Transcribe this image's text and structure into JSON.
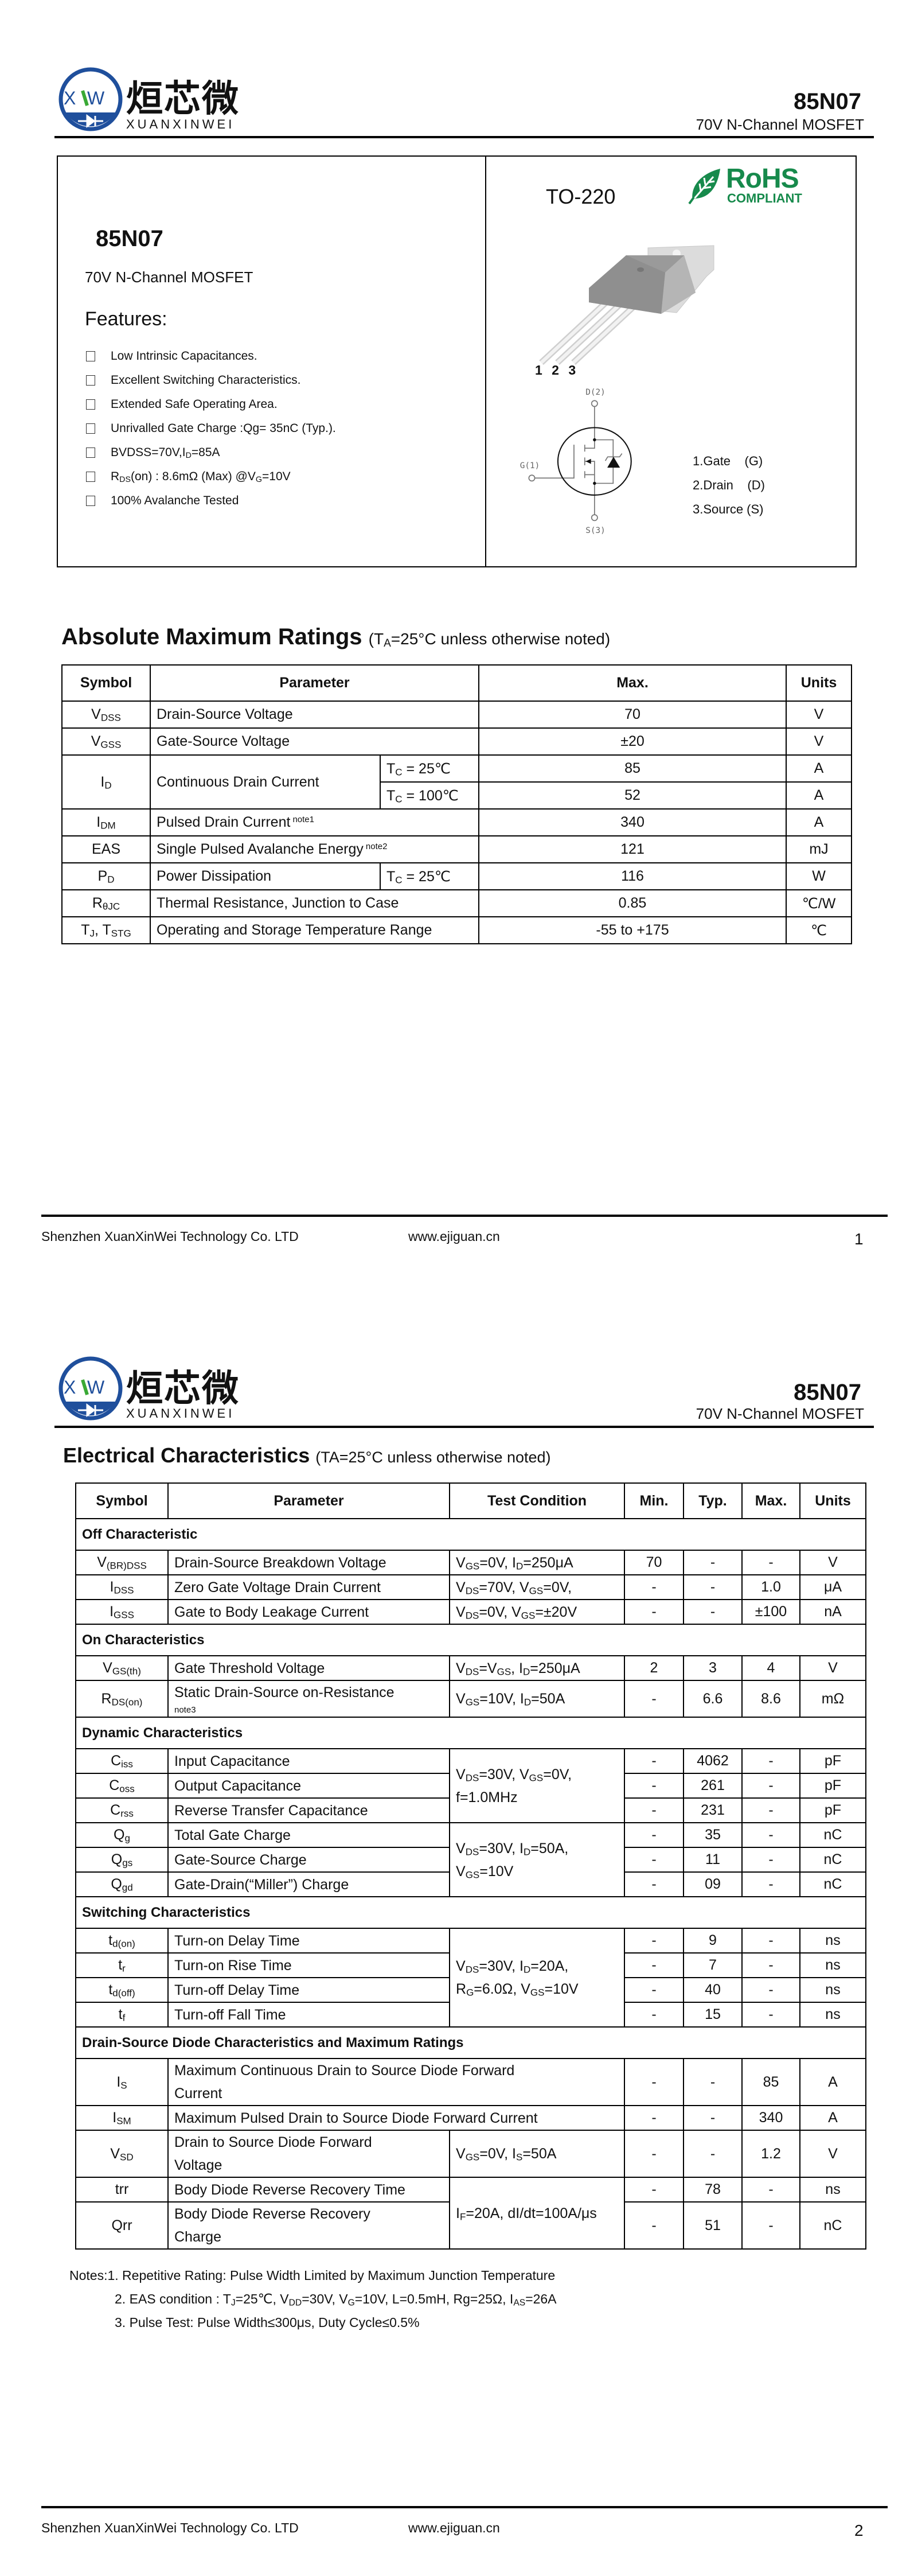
{
  "brand": {
    "logo_letters": "XW",
    "name_cn": "烜芯微",
    "name_en": "XUANXINWEI",
    "blue": "#1f4f9c",
    "green": "#3aa935"
  },
  "header": {
    "part": "85N07",
    "subtitle": "70V N-Channel MOSFET"
  },
  "overview": {
    "part": "85N07",
    "subtitle": "70V N-Channel MOSFET",
    "features_title": "Features:",
    "features": [
      "Low Intrinsic Capacitances.",
      "Excellent Switching Characteristics.",
      "Extended Safe Operating Area.",
      "Unrivalled Gate Charge :Qg= 35nC (Typ.).",
      [
        "BVDSS=70V,I",
        "D",
        "=85A"
      ],
      [
        "R",
        "DS",
        "(on) : 8.6mΩ (Max) @V",
        "G",
        "=10V"
      ],
      "100% Avalanche Tested"
    ],
    "package": "TO-220",
    "rohs": {
      "title": "RoHS",
      "subtitle": "COMPLIANT",
      "color": "#178a4c"
    },
    "pin_numbers": "1 2 3",
    "schematic": {
      "drain": "D(2)",
      "gate": "G(1)",
      "source": "S(3)"
    },
    "pins": [
      "1.Gate    (G)",
      "2.Drain    (D)",
      "3.Source (S)"
    ]
  },
  "abs_max": {
    "title": "Absolute Maximum Ratings",
    "condition": [
      "(T",
      "A",
      "=25°C unless otherwise noted)"
    ],
    "columns": [
      "Symbol",
      "Parameter",
      "Max.",
      "Units"
    ],
    "rows": [
      {
        "symbol": [
          "V",
          "DSS"
        ],
        "parameter": "Drain-Source Voltage",
        "max": "70",
        "unit": "V"
      },
      {
        "symbol": [
          "V",
          "GSS"
        ],
        "parameter": "Gate-Source Voltage",
        "max": "±20",
        "unit": "V"
      },
      {
        "symbol": [
          "I",
          "D"
        ],
        "parameter": "Continuous Drain Current",
        "sub_rows": [
          {
            "condition": [
              "T",
              "C",
              " = 25℃"
            ],
            "max": "85",
            "unit": "A"
          },
          {
            "condition": [
              "T",
              "C",
              " = 100℃"
            ],
            "max": "52",
            "unit": "A"
          }
        ]
      },
      {
        "symbol": [
          "I",
          "DM"
        ],
        "parameter": "Pulsed Drain Current",
        "note": "note1",
        "max": "340",
        "unit": "A"
      },
      {
        "symbol": "EAS",
        "parameter": "Single Pulsed Avalanche Energy",
        "note": "note2",
        "max": "121",
        "unit": "mJ"
      },
      {
        "symbol": [
          "P",
          "D"
        ],
        "parameter": "Power Dissipation",
        "condition": [
          "T",
          "C",
          " = 25℃"
        ],
        "max": "116",
        "unit": "W"
      },
      {
        "symbol": [
          "R",
          "θJC"
        ],
        "parameter": "Thermal Resistance, Junction to Case",
        "max": "0.85",
        "unit": "℃/W"
      },
      {
        "symbol": [
          "T",
          "J",
          ", T",
          "STG"
        ],
        "parameter": "Operating and Storage Temperature Range",
        "max": "-55 to +175",
        "unit": "℃"
      }
    ]
  },
  "electrical": {
    "title": "Electrical Characteristics",
    "condition": "(TA=25°C unless otherwise noted)",
    "columns": [
      "Symbol",
      "Parameter",
      "Test Condition",
      "Min.",
      "Typ.",
      "Max.",
      "Units"
    ],
    "sections": [
      {
        "title": "Off Characteristic",
        "rows": [
          {
            "symbol": [
              "V",
              "(BR)DSS"
            ],
            "parameter": "Drain-Source Breakdown Voltage",
            "condition": [
              [
                "V",
                "GS",
                "=0V, I",
                "D",
                "=250μA"
              ]
            ],
            "min": "70",
            "typ": "-",
            "max": "-",
            "unit": "V"
          },
          {
            "symbol": [
              "I",
              "DSS"
            ],
            "parameter": "Zero Gate Voltage Drain Current",
            "condition": [
              [
                "V",
                "DS",
                "=70V, V",
                "GS",
                "=0V,"
              ]
            ],
            "min": "-",
            "typ": "-",
            "max": "1.0",
            "unit": "μA"
          },
          {
            "symbol": [
              "I",
              "GSS"
            ],
            "parameter": "Gate to Body Leakage Current",
            "condition": [
              [
                "V",
                "DS",
                "=0V, V",
                "GS",
                "=±20V"
              ]
            ],
            "min": "-",
            "typ": "-",
            "max": "±100",
            "unit": "nA"
          }
        ]
      },
      {
        "title": "On Characteristics",
        "rows": [
          {
            "symbol": [
              "V",
              "GS(th)"
            ],
            "parameter": "Gate Threshold Voltage",
            "condition": [
              [
                "V",
                "DS",
                "=V",
                "GS",
                ", I",
                "D",
                "=250μA"
              ]
            ],
            "min": "2",
            "typ": "3",
            "max": "4",
            "unit": "V"
          },
          {
            "symbol": [
              "R",
              "DS(on)"
            ],
            "parameter": "Static Drain-Source on-Resistance",
            "note": "note3",
            "condition": [
              [
                "V",
                "GS",
                "=10V, I",
                "D",
                "=50A"
              ]
            ],
            "min": "-",
            "typ": "6.6",
            "max": "8.6",
            "unit": "mΩ"
          }
        ]
      },
      {
        "title": "Dynamic Characteristics",
        "rows": [
          {
            "symbol": [
              "C",
              "iss"
            ],
            "parameter": "Input Capacitance",
            "condition": [
              [
                "V",
                "DS",
                "=30V, V",
                "GS",
                "=0V,"
              ],
              "f=1.0MHz"
            ],
            "min": "-",
            "typ": "4062",
            "max": "-",
            "unit": "pF"
          },
          {
            "symbol": [
              "C",
              "oss"
            ],
            "parameter": "Output Capacitance",
            "condition": null,
            "min": "-",
            "typ": "261",
            "max": "-",
            "unit": "pF"
          },
          {
            "symbol": [
              "C",
              "rss"
            ],
            "parameter": "Reverse Transfer Capacitance",
            "condition": null,
            "min": "-",
            "typ": "231",
            "max": "-",
            "unit": "pF"
          },
          {
            "symbol": [
              "Q",
              "g"
            ],
            "parameter": "Total Gate Charge",
            "condition": [
              [
                "V",
                "DS",
                "=30V, I",
                "D",
                "=50A,"
              ],
              [
                "V",
                "GS",
                "=10V"
              ]
            ],
            "min": "-",
            "typ": "35",
            "max": "-",
            "unit": "nC"
          },
          {
            "symbol": [
              "Q",
              "gs"
            ],
            "parameter": "Gate-Source Charge",
            "condition": null,
            "min": "-",
            "typ": "11",
            "max": "-",
            "unit": "nC"
          },
          {
            "symbol": [
              "Q",
              "gd"
            ],
            "parameter": "Gate-Drain(“Miller”) Charge",
            "condition": null,
            "min": "-",
            "typ": "09",
            "max": "-",
            "unit": "nC"
          }
        ]
      },
      {
        "title": "Switching Characteristics",
        "rows": [
          {
            "symbol": [
              "t",
              "d(on)"
            ],
            "parameter": "Turn-on Delay Time",
            "condition": [
              [
                "V",
                "DS",
                "=30V, I",
                "D",
                "=20A,"
              ],
              [
                "R",
                "G",
                "=6.0Ω, V",
                "GS",
                "=10V"
              ]
            ],
            "min": "-",
            "typ": "9",
            "max": "-",
            "unit": "ns"
          },
          {
            "symbol": [
              "t",
              "r"
            ],
            "parameter": "Turn-on Rise Time",
            "condition": null,
            "min": "-",
            "typ": "7",
            "max": "-",
            "unit": "ns"
          },
          {
            "symbol": [
              "t",
              "d(off)"
            ],
            "parameter": "Turn-off Delay Time",
            "condition": null,
            "min": "-",
            "typ": "40",
            "max": "-",
            "unit": "ns"
          },
          {
            "symbol": [
              "t",
              "f"
            ],
            "parameter": "Turn-off Fall Time",
            "condition": null,
            "min": "-",
            "typ": "15",
            "max": "-",
            "unit": "ns"
          }
        ]
      },
      {
        "title": "Drain-Source Diode Characteristics and Maximum Ratings",
        "rows": [
          {
            "symbol": [
              "I",
              "S"
            ],
            "parameter": [
              "Maximum Continuous Drain to Source Diode Forward",
              "Current"
            ],
            "min": "-",
            "typ": "-",
            "max": "85",
            "unit": "A"
          },
          {
            "symbol": [
              "I",
              "SM"
            ],
            "parameter": "Maximum Pulsed Drain to Source Diode Forward Current",
            "min": "-",
            "typ": "-",
            "max": "340",
            "unit": "A"
          },
          {
            "symbol": [
              "V",
              "SD"
            ],
            "parameter": [
              "Drain to Source Diode Forward",
              "Voltage"
            ],
            "condition": [
              [
                "V",
                "GS",
                "=0V, I",
                "S",
                "=50A"
              ]
            ],
            "min": "-",
            "typ": "-",
            "max": "1.2",
            "unit": "V"
          },
          {
            "symbol": "trr",
            "parameter": "Body Diode Reverse Recovery Time",
            "condition": [
              [
                "I",
                "F",
                "=20A, dI/dt=100A/μs"
              ]
            ],
            "min": "-",
            "typ": "78",
            "max": "-",
            "unit": "ns"
          },
          {
            "symbol": "Qrr",
            "parameter": [
              "Body Diode Reverse Recovery",
              "Charge"
            ],
            "condition": null,
            "min": "-",
            "typ": "51",
            "max": "-",
            "unit": "nC"
          }
        ]
      }
    ],
    "notes": [
      "Notes:1. Repetitive Rating: Pulse Width Limited by Maximum Junction Temperature",
      [
        "2. EAS condition : T",
        "J",
        "=25℃, V",
        "DD",
        "=30V, V",
        "G",
        "=10V, L=0.5mH, Rg=25Ω, I",
        "AS",
        "=26A"
      ],
      "3. Pulse Test: Pulse Width≤300μs, Duty Cycle≤0.5%"
    ]
  },
  "footer": {
    "company": "Shenzhen XuanXinWei Technology Co. LTD",
    "website": "www.ejiguan.cn",
    "pages": [
      "1",
      "2"
    ]
  }
}
